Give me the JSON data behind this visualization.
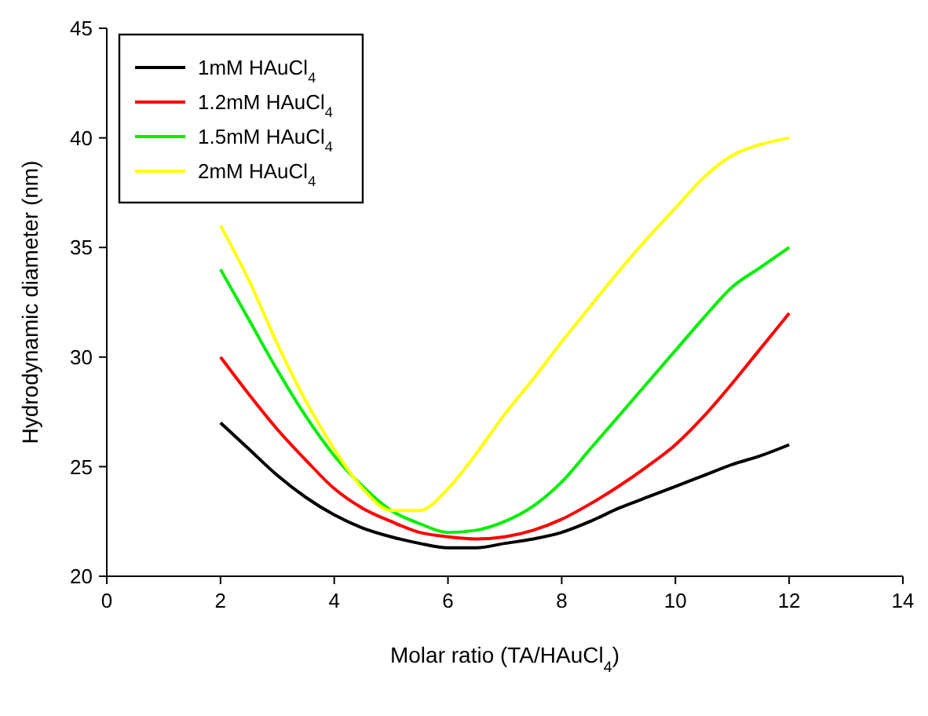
{
  "chart_data": {
    "type": "line",
    "xlabel": "Molar ratio (TA/HAuCl$_{4}$)",
    "ylabel": "Hydrodynamic diameter (nm)",
    "x": [
      2,
      2.5,
      3,
      3.5,
      4,
      4.5,
      5,
      5.5,
      6,
      6.5,
      7,
      7.5,
      8,
      8.5,
      9,
      9.5,
      10,
      10.5,
      11,
      11.5,
      12
    ],
    "xlim": [
      0,
      14
    ],
    "xticks": [
      0,
      2,
      4,
      6,
      8,
      10,
      12,
      14
    ],
    "ylim": [
      20,
      45
    ],
    "yticks": [
      20,
      25,
      30,
      35,
      40,
      45
    ],
    "grid": false,
    "legend": "top left",
    "marker": "none",
    "line_style": "solid",
    "series": [
      {
        "name": "1mM HAuCl$_{4}$",
        "color": "#000000",
        "values": [
          27,
          25.8,
          24.6,
          23.6,
          22.8,
          22.2,
          21.8,
          21.5,
          21.3,
          21.3,
          21.5,
          21.7,
          22,
          22.5,
          23.1,
          23.6,
          24.1,
          24.6,
          25.1,
          25.5,
          26
        ]
      },
      {
        "name": "1.2mM HAuCl$_{4}$",
        "color": "#ff0000",
        "values": [
          30,
          28.3,
          26.7,
          25.3,
          24,
          23.1,
          22.5,
          22,
          21.8,
          21.7,
          21.8,
          22.1,
          22.6,
          23.3,
          24.1,
          25,
          26,
          27.3,
          28.8,
          30.4,
          32
        ]
      },
      {
        "name": "1.5mM HAuCl$_{4}$",
        "color": "#00ee00",
        "values": [
          34,
          31.7,
          29.4,
          27.3,
          25.5,
          24.1,
          23,
          22.4,
          22,
          22.1,
          22.5,
          23.2,
          24.3,
          25.8,
          27.3,
          28.8,
          30.3,
          31.8,
          33.2,
          34.1,
          35
        ]
      },
      {
        "name": "2mM HAuCl$_{4}$",
        "color": "#ffff00",
        "values": [
          36,
          33.5,
          30.6,
          28,
          25.8,
          24,
          23,
          23,
          24,
          25.6,
          27.4,
          29,
          30.7,
          32.3,
          33.9,
          35.4,
          36.8,
          38.2,
          39.2,
          39.7,
          40
        ]
      }
    ]
  }
}
